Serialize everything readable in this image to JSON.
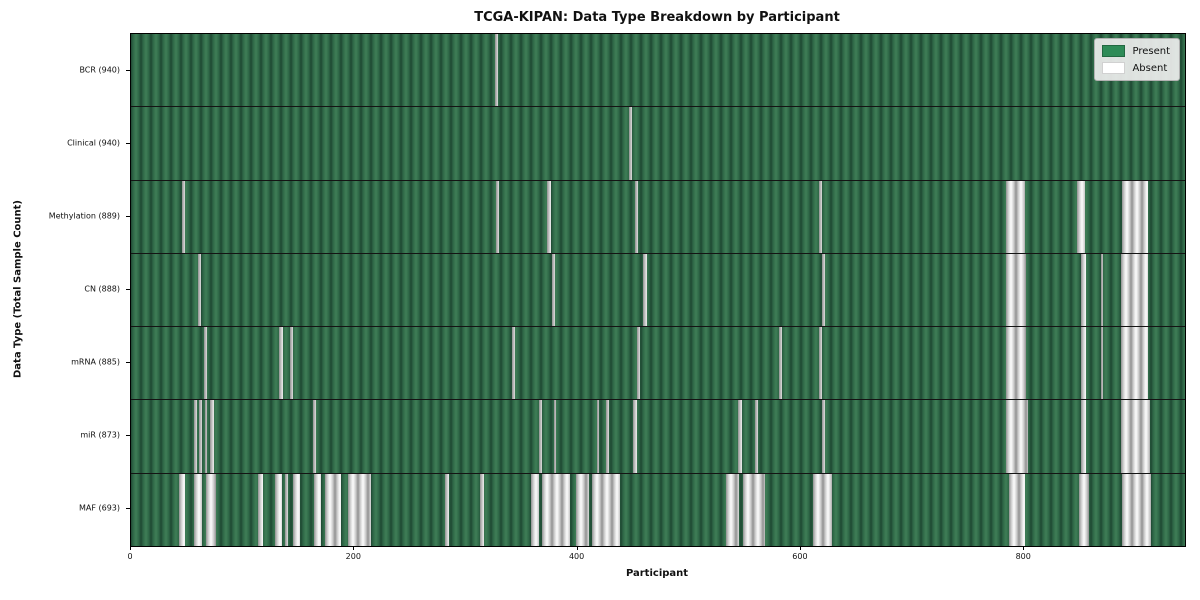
{
  "colors": {
    "present": "#2e8b57",
    "absent": "#ffffff",
    "present_fill_dark": "#1f4832",
    "present_fill_light": "#3f7d56",
    "absent_fill_gray": "#c6c6c6",
    "background": "#ffffff",
    "legend_background": "#ececec"
  },
  "chart_data": {
    "type": "heatmap",
    "title": "TCGA-KIPAN: Data Type Breakdown by Participant",
    "xlabel": "Participant",
    "ylabel": "Data Type (Total Sample Count)",
    "x_ticks": [
      0,
      200,
      400,
      600,
      800
    ],
    "x_range": [
      0,
      944
    ],
    "grid": false,
    "legend_position": "upper right",
    "legend": [
      {
        "label": "Present",
        "color": "#2e8b57"
      },
      {
        "label": "Absent",
        "color": "#ffffff"
      }
    ],
    "rows": [
      {
        "label": "BCR (940)",
        "data_type": "BCR",
        "total_sample_count": 940,
        "absent_ranges": [
          [
            326,
            329
          ]
        ]
      },
      {
        "label": "Clinical (940)",
        "data_type": "Clinical",
        "total_sample_count": 940,
        "absent_ranges": [
          [
            446,
            449
          ]
        ]
      },
      {
        "label": "Methylation (889)",
        "data_type": "Methylation",
        "total_sample_count": 889,
        "absent_ranges": [
          [
            46,
            48
          ],
          [
            327,
            330
          ],
          [
            373,
            376
          ],
          [
            451,
            454
          ],
          [
            616,
            619
          ],
          [
            784,
            801
          ],
          [
            847,
            854
          ],
          [
            888,
            911
          ]
        ]
      },
      {
        "label": "CN (888)",
        "data_type": "CN",
        "total_sample_count": 888,
        "absent_ranges": [
          [
            60,
            63
          ],
          [
            377,
            380
          ],
          [
            459,
            462
          ],
          [
            619,
            622
          ],
          [
            784,
            802
          ],
          [
            851,
            855
          ],
          [
            869,
            871
          ],
          [
            887,
            911
          ]
        ]
      },
      {
        "label": "mRNA (885)",
        "data_type": "mRNA",
        "total_sample_count": 885,
        "absent_ranges": [
          [
            65,
            68
          ],
          [
            133,
            136
          ],
          [
            142,
            145
          ],
          [
            341,
            344
          ],
          [
            453,
            456
          ],
          [
            580,
            583
          ],
          [
            616,
            619
          ],
          [
            784,
            802
          ],
          [
            851,
            855
          ],
          [
            869,
            871
          ],
          [
            887,
            911
          ]
        ]
      },
      {
        "label": "miR (873)",
        "data_type": "miR",
        "total_sample_count": 873,
        "absent_ranges": [
          [
            56,
            59
          ],
          [
            61,
            64
          ],
          [
            66,
            68
          ],
          [
            71,
            74
          ],
          [
            163,
            166
          ],
          [
            365,
            368
          ],
          [
            379,
            381
          ],
          [
            417,
            419
          ],
          [
            425,
            428
          ],
          [
            450,
            453
          ],
          [
            544,
            547
          ],
          [
            559,
            562
          ],
          [
            619,
            622
          ],
          [
            784,
            803
          ],
          [
            851,
            855
          ],
          [
            887,
            913
          ]
        ]
      },
      {
        "label": "MAF (693)",
        "data_type": "MAF",
        "total_sample_count": 693,
        "absent_ranges": [
          [
            43,
            48
          ],
          [
            56,
            64
          ],
          [
            67,
            76
          ],
          [
            114,
            118
          ],
          [
            129,
            135
          ],
          [
            138,
            141
          ],
          [
            145,
            151
          ],
          [
            164,
            170
          ],
          [
            174,
            188
          ],
          [
            194,
            215
          ],
          [
            281,
            285
          ],
          [
            313,
            316
          ],
          [
            358,
            365
          ],
          [
            368,
            393
          ],
          [
            399,
            410
          ],
          [
            413,
            438
          ],
          [
            533,
            545
          ],
          [
            548,
            568
          ],
          [
            611,
            628
          ],
          [
            786,
            801
          ],
          [
            849,
            858
          ],
          [
            888,
            914
          ]
        ]
      }
    ]
  }
}
